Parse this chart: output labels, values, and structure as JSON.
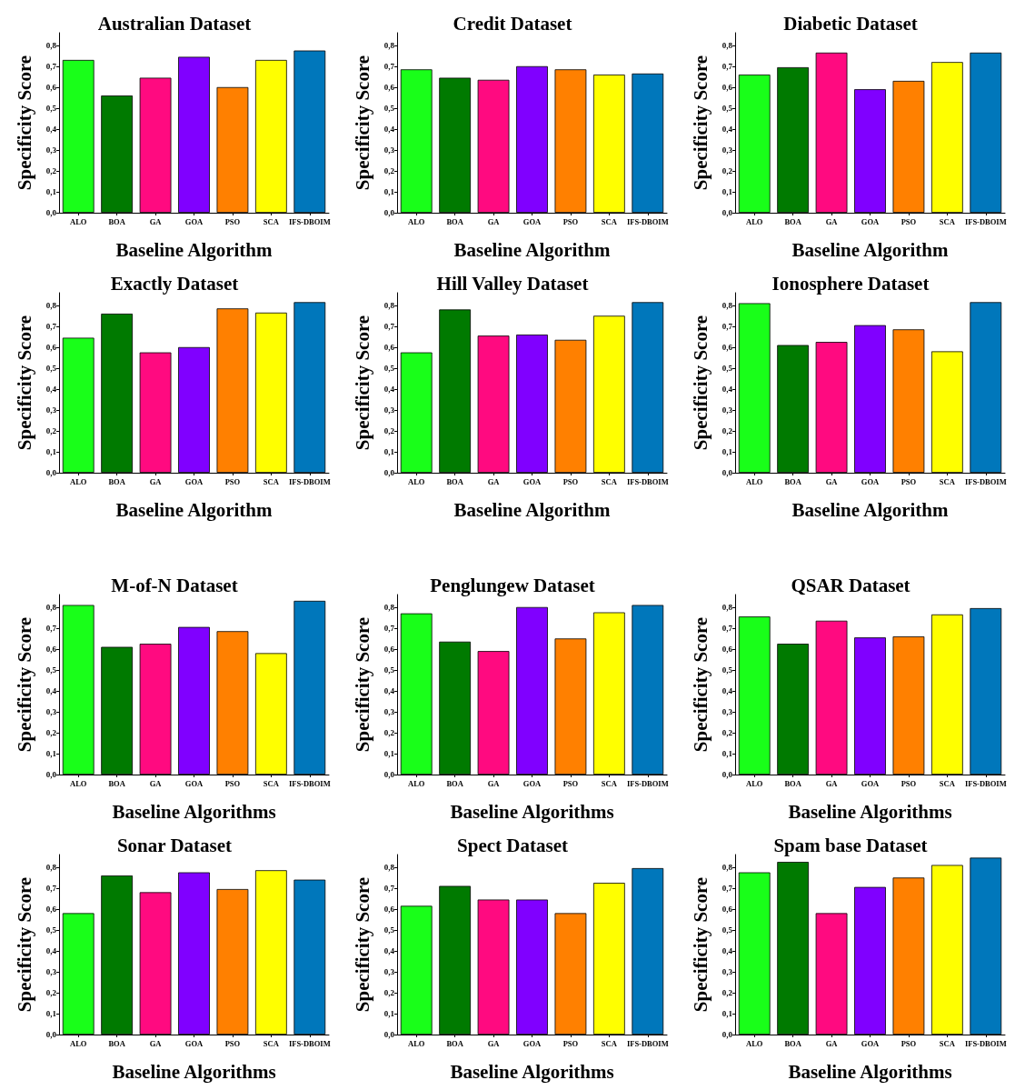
{
  "chart_data": [
    {
      "type": "bar",
      "title": "Australian Dataset",
      "xlabel": "Baseline Algorithm",
      "ylabel": "Specificity Score",
      "categories": [
        "ALO",
        "BOA",
        "GA",
        "GOA",
        "PSO",
        "SCA",
        "IFS-DBOIM"
      ],
      "values": [
        0.73,
        0.56,
        0.645,
        0.745,
        0.6,
        0.73,
        0.775
      ],
      "colors": [
        "#19ff19",
        "#007a00",
        "#ff0a80",
        "#8000ff",
        "#ff8000",
        "#ffff00",
        "#0077bb"
      ],
      "ylim": [
        0,
        0.86
      ],
      "yticks": [
        {
          "value": 0,
          "label": "0,0"
        },
        {
          "value": 0.1,
          "label": "0,1"
        },
        {
          "value": 0.2,
          "label": "0,2"
        },
        {
          "value": 0.3,
          "label": "0,3"
        },
        {
          "value": 0.4,
          "label": "0,4"
        },
        {
          "value": 0.5,
          "label": "0,5"
        },
        {
          "value": 0.6,
          "label": "0,6"
        },
        {
          "value": 0.7,
          "label": "0,7"
        },
        {
          "value": 0.8,
          "label": "0,8"
        }
      ]
    },
    {
      "type": "bar",
      "title": "Credit Dataset",
      "xlabel": "Baseline Algorithm",
      "ylabel": "Specificity Score",
      "categories": [
        "ALO",
        "BOA",
        "GA",
        "GOA",
        "PSO",
        "SCA",
        "IFS-DBOIM"
      ],
      "values": [
        0.685,
        0.645,
        0.635,
        0.7,
        0.685,
        0.66,
        0.665
      ],
      "colors": [
        "#19ff19",
        "#007a00",
        "#ff0a80",
        "#8000ff",
        "#ff8000",
        "#ffff00",
        "#0077bb"
      ],
      "ylim": [
        0,
        0.86
      ],
      "yticks": [
        {
          "value": 0,
          "label": "0,0"
        },
        {
          "value": 0.1,
          "label": "0,1"
        },
        {
          "value": 0.2,
          "label": "0,2"
        },
        {
          "value": 0.3,
          "label": "0,3"
        },
        {
          "value": 0.4,
          "label": "0,4"
        },
        {
          "value": 0.5,
          "label": "0,5"
        },
        {
          "value": 0.6,
          "label": "0,6"
        },
        {
          "value": 0.7,
          "label": "0,7"
        },
        {
          "value": 0.8,
          "label": "0,8"
        }
      ]
    },
    {
      "type": "bar",
      "title": "Diabetic Dataset",
      "xlabel": "Baseline Algorithm",
      "ylabel": "Specificity Score",
      "categories": [
        "ALO",
        "BOA",
        "GA",
        "GOA",
        "PSO",
        "SCA",
        "IFS-DBOIM"
      ],
      "values": [
        0.66,
        0.695,
        0.765,
        0.59,
        0.63,
        0.72,
        0.765
      ],
      "colors": [
        "#19ff19",
        "#007a00",
        "#ff0a80",
        "#8000ff",
        "#ff8000",
        "#ffff00",
        "#0077bb"
      ],
      "ylim": [
        0,
        0.86
      ],
      "yticks": [
        {
          "value": 0,
          "label": "0,0"
        },
        {
          "value": 0.1,
          "label": "0,1"
        },
        {
          "value": 0.2,
          "label": "0,2"
        },
        {
          "value": 0.3,
          "label": "0,3"
        },
        {
          "value": 0.4,
          "label": "0,4"
        },
        {
          "value": 0.5,
          "label": "0,5"
        },
        {
          "value": 0.6,
          "label": "0,6"
        },
        {
          "value": 0.7,
          "label": "0,7"
        },
        {
          "value": 0.8,
          "label": "0,8"
        }
      ]
    },
    {
      "type": "bar",
      "title": "Exactly Dataset",
      "xlabel": "Baseline Algorithm",
      "ylabel": "Specificity Score",
      "categories": [
        "ALO",
        "BOA",
        "GA",
        "GOA",
        "PSO",
        "SCA",
        "IFS-DBOIM"
      ],
      "values": [
        0.645,
        0.76,
        0.575,
        0.6,
        0.785,
        0.765,
        0.815
      ],
      "colors": [
        "#19ff19",
        "#007a00",
        "#ff0a80",
        "#8000ff",
        "#ff8000",
        "#ffff00",
        "#0077bb"
      ],
      "ylim": [
        0,
        0.86
      ],
      "yticks": [
        {
          "value": 0,
          "label": "0,0"
        },
        {
          "value": 0.1,
          "label": "0,1"
        },
        {
          "value": 0.2,
          "label": "0,2"
        },
        {
          "value": 0.3,
          "label": "0,3"
        },
        {
          "value": 0.4,
          "label": "0,4"
        },
        {
          "value": 0.5,
          "label": "0,5"
        },
        {
          "value": 0.6,
          "label": "0,6"
        },
        {
          "value": 0.7,
          "label": "0,7"
        },
        {
          "value": 0.8,
          "label": "0,8"
        }
      ]
    },
    {
      "type": "bar",
      "title": "Hill Valley Dataset",
      "xlabel": "Baseline Algorithm",
      "ylabel": "Specificity Score",
      "categories": [
        "ALO",
        "BOA",
        "GA",
        "GOA",
        "PSO",
        "SCA",
        "IFS-DBOIM"
      ],
      "values": [
        0.575,
        0.78,
        0.655,
        0.66,
        0.635,
        0.75,
        0.815
      ],
      "colors": [
        "#19ff19",
        "#007a00",
        "#ff0a80",
        "#8000ff",
        "#ff8000",
        "#ffff00",
        "#0077bb"
      ],
      "ylim": [
        0,
        0.86
      ],
      "yticks": [
        {
          "value": 0,
          "label": "0,0"
        },
        {
          "value": 0.1,
          "label": "0,1"
        },
        {
          "value": 0.2,
          "label": "0,2"
        },
        {
          "value": 0.3,
          "label": "0,3"
        },
        {
          "value": 0.4,
          "label": "0,4"
        },
        {
          "value": 0.5,
          "label": "0,5"
        },
        {
          "value": 0.6,
          "label": "0,6"
        },
        {
          "value": 0.7,
          "label": "0,7"
        },
        {
          "value": 0.8,
          "label": "0,8"
        }
      ]
    },
    {
      "type": "bar",
      "title": "Ionosphere Dataset",
      "xlabel": "Baseline Algorithm",
      "ylabel": "Specificity Score",
      "categories": [
        "ALO",
        "BOA",
        "GA",
        "GOA",
        "PSO",
        "SCA",
        "IFS-DBOIM"
      ],
      "values": [
        0.81,
        0.61,
        0.625,
        0.705,
        0.685,
        0.58,
        0.815
      ],
      "colors": [
        "#19ff19",
        "#007a00",
        "#ff0a80",
        "#8000ff",
        "#ff8000",
        "#ffff00",
        "#0077bb"
      ],
      "ylim": [
        0,
        0.86
      ],
      "yticks": [
        {
          "value": 0,
          "label": "0,0"
        },
        {
          "value": 0.1,
          "label": "0,1"
        },
        {
          "value": 0.2,
          "label": "0,2"
        },
        {
          "value": 0.3,
          "label": "0,3"
        },
        {
          "value": 0.4,
          "label": "0,4"
        },
        {
          "value": 0.5,
          "label": "0,5"
        },
        {
          "value": 0.6,
          "label": "0,6"
        },
        {
          "value": 0.7,
          "label": "0,7"
        },
        {
          "value": 0.8,
          "label": "0,8"
        }
      ]
    },
    {
      "type": "bar",
      "title": "M-of-N Dataset",
      "xlabel": "Baseline Algorithms",
      "ylabel": "Specificity Score",
      "categories": [
        "ALO",
        "BOA",
        "GA",
        "GOA",
        "PSO",
        "SCA",
        "IFS-DBOIM"
      ],
      "values": [
        0.81,
        0.61,
        0.625,
        0.705,
        0.685,
        0.58,
        0.83
      ],
      "colors": [
        "#19ff19",
        "#007a00",
        "#ff0a80",
        "#8000ff",
        "#ff8000",
        "#ffff00",
        "#0077bb"
      ],
      "ylim": [
        0,
        0.86
      ],
      "yticks": [
        {
          "value": 0,
          "label": "0,0"
        },
        {
          "value": 0.1,
          "label": "0,1"
        },
        {
          "value": 0.2,
          "label": "0,2"
        },
        {
          "value": 0.3,
          "label": "0,3"
        },
        {
          "value": 0.4,
          "label": "0,4"
        },
        {
          "value": 0.5,
          "label": "0,5"
        },
        {
          "value": 0.6,
          "label": "0,6"
        },
        {
          "value": 0.7,
          "label": "0,7"
        },
        {
          "value": 0.8,
          "label": "0,8"
        }
      ]
    },
    {
      "type": "bar",
      "title": "Penglungew Dataset",
      "xlabel": "Baseline Algorithms",
      "ylabel": "Specificity Score",
      "categories": [
        "ALO",
        "BOA",
        "GA",
        "GOA",
        "PSO",
        "SCA",
        "IFS-DBOIM"
      ],
      "values": [
        0.77,
        0.635,
        0.59,
        0.8,
        0.65,
        0.775,
        0.81
      ],
      "colors": [
        "#19ff19",
        "#007a00",
        "#ff0a80",
        "#8000ff",
        "#ff8000",
        "#ffff00",
        "#0077bb"
      ],
      "ylim": [
        0,
        0.86
      ],
      "yticks": [
        {
          "value": 0,
          "label": "0,0"
        },
        {
          "value": 0.1,
          "label": "0,1"
        },
        {
          "value": 0.2,
          "label": "0,2"
        },
        {
          "value": 0.3,
          "label": "0,3"
        },
        {
          "value": 0.4,
          "label": "0,4"
        },
        {
          "value": 0.5,
          "label": "0,5"
        },
        {
          "value": 0.6,
          "label": "0,6"
        },
        {
          "value": 0.7,
          "label": "0,7"
        },
        {
          "value": 0.8,
          "label": "0,8"
        }
      ]
    },
    {
      "type": "bar",
      "title": "QSAR Dataset",
      "xlabel": "Baseline Algorithms",
      "ylabel": "Specificity Score",
      "categories": [
        "ALO",
        "BOA",
        "GA",
        "GOA",
        "PSO",
        "SCA",
        "IFS-DBOIM"
      ],
      "values": [
        0.755,
        0.625,
        0.735,
        0.655,
        0.66,
        0.765,
        0.795
      ],
      "colors": [
        "#19ff19",
        "#007a00",
        "#ff0a80",
        "#8000ff",
        "#ff8000",
        "#ffff00",
        "#0077bb"
      ],
      "ylim": [
        0,
        0.86
      ],
      "yticks": [
        {
          "value": 0,
          "label": "0,0"
        },
        {
          "value": 0.1,
          "label": "0,1"
        },
        {
          "value": 0.2,
          "label": "0,2"
        },
        {
          "value": 0.3,
          "label": "0,3"
        },
        {
          "value": 0.4,
          "label": "0,4"
        },
        {
          "value": 0.5,
          "label": "0,5"
        },
        {
          "value": 0.6,
          "label": "0,6"
        },
        {
          "value": 0.7,
          "label": "0,7"
        },
        {
          "value": 0.8,
          "label": "0,8"
        }
      ]
    },
    {
      "type": "bar",
      "title": "Sonar Dataset",
      "xlabel": "Baseline Algorithms",
      "ylabel": "Specificity Score",
      "categories": [
        "ALO",
        "BOA",
        "GA",
        "GOA",
        "PSO",
        "SCA",
        "IFS-DBOIM"
      ],
      "values": [
        0.58,
        0.76,
        0.68,
        0.775,
        0.695,
        0.785,
        0.74
      ],
      "colors": [
        "#19ff19",
        "#007a00",
        "#ff0a80",
        "#8000ff",
        "#ff8000",
        "#ffff00",
        "#0077bb"
      ],
      "ylim": [
        0,
        0.86
      ],
      "yticks": [
        {
          "value": 0,
          "label": "0,0"
        },
        {
          "value": 0.1,
          "label": "0,1"
        },
        {
          "value": 0.2,
          "label": "0,2"
        },
        {
          "value": 0.3,
          "label": "0,3"
        },
        {
          "value": 0.4,
          "label": "0,4"
        },
        {
          "value": 0.5,
          "label": "0,5"
        },
        {
          "value": 0.6,
          "label": "0,6"
        },
        {
          "value": 0.7,
          "label": "0,7"
        },
        {
          "value": 0.8,
          "label": "0,8"
        }
      ]
    },
    {
      "type": "bar",
      "title": "Spect Dataset",
      "xlabel": "Baseline Algorithms",
      "ylabel": "Specificity Score",
      "categories": [
        "ALO",
        "BOA",
        "GA",
        "GOA",
        "PSO",
        "SCA",
        "IFS-DBOIM"
      ],
      "values": [
        0.615,
        0.71,
        0.645,
        0.645,
        0.58,
        0.725,
        0.795
      ],
      "colors": [
        "#19ff19",
        "#007a00",
        "#ff0a80",
        "#8000ff",
        "#ff8000",
        "#ffff00",
        "#0077bb"
      ],
      "ylim": [
        0,
        0.86
      ],
      "yticks": [
        {
          "value": 0,
          "label": "0,0"
        },
        {
          "value": 0.1,
          "label": "0,1"
        },
        {
          "value": 0.2,
          "label": "0,2"
        },
        {
          "value": 0.3,
          "label": "0,3"
        },
        {
          "value": 0.4,
          "label": "0,4"
        },
        {
          "value": 0.5,
          "label": "0,5"
        },
        {
          "value": 0.6,
          "label": "0,6"
        },
        {
          "value": 0.7,
          "label": "0,7"
        },
        {
          "value": 0.8,
          "label": "0,8"
        }
      ]
    },
    {
      "type": "bar",
      "title": "Spam base Dataset",
      "xlabel": "Baseline Algorithms",
      "ylabel": "Specificity Score",
      "categories": [
        "ALO",
        "BOA",
        "GA",
        "GOA",
        "PSO",
        "SCA",
        "IFS-DBOIM"
      ],
      "values": [
        0.775,
        0.825,
        0.58,
        0.705,
        0.75,
        0.81,
        0.845
      ],
      "colors": [
        "#19ff19",
        "#007a00",
        "#ff0a80",
        "#8000ff",
        "#ff8000",
        "#ffff00",
        "#0077bb"
      ],
      "ylim": [
        0,
        0.86
      ],
      "yticks": [
        {
          "value": 0,
          "label": "0,0"
        },
        {
          "value": 0.1,
          "label": "0,1"
        },
        {
          "value": 0.2,
          "label": "0,2"
        },
        {
          "value": 0.3,
          "label": "0,3"
        },
        {
          "value": 0.4,
          "label": "0,4"
        },
        {
          "value": 0.5,
          "label": "0,5"
        },
        {
          "value": 0.6,
          "label": "0,6"
        },
        {
          "value": 0.7,
          "label": "0,7"
        },
        {
          "value": 0.8,
          "label": "0,8"
        }
      ]
    }
  ]
}
